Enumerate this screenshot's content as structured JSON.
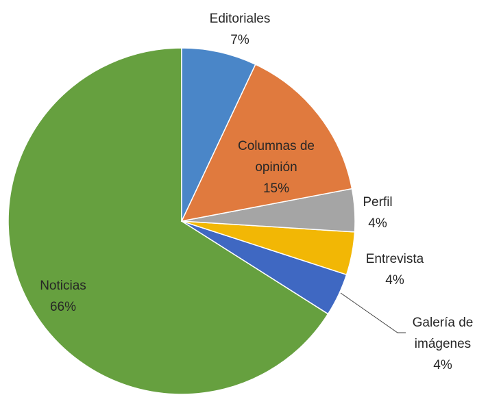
{
  "chart_data": {
    "type": "pie",
    "categories": [
      "Editoriales",
      "Columnas de opinión",
      "Perfil",
      "Entrevista",
      "Galería de imágenes",
      "Noticias"
    ],
    "values": [
      7,
      15,
      4,
      4,
      4,
      66
    ],
    "value_labels": [
      "7%",
      "15%",
      "4%",
      "4%",
      "4%",
      "66%"
    ],
    "colors": [
      "#4a86c8",
      "#e07a3e",
      "#a5a5a5",
      "#f2b705",
      "#3f68c2",
      "#66a03f"
    ]
  }
}
